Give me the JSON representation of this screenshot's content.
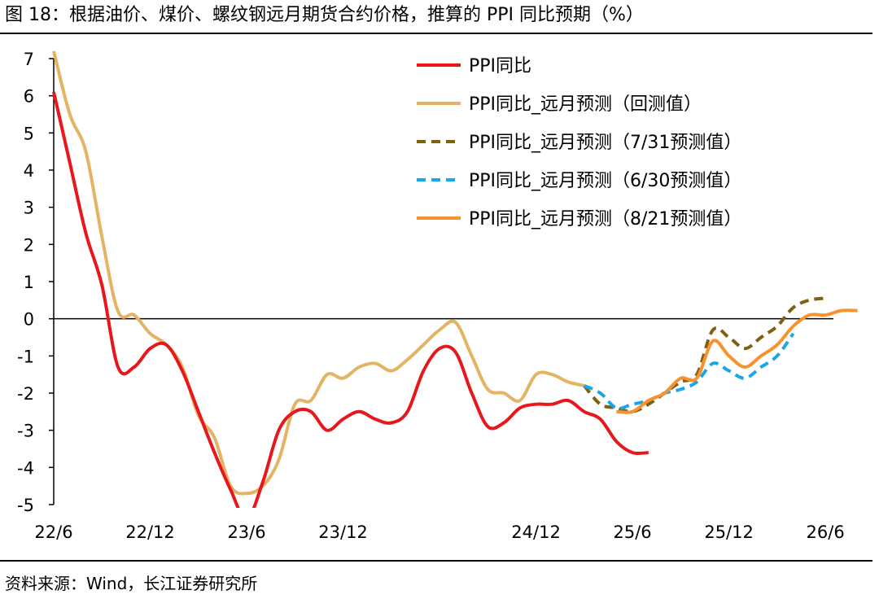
{
  "title": "图 18：根据油价、煤价、螺纹钢远月期货合约价格，推算的 PPI 同比预期（%）",
  "source": "资料来源：Wind，长江证券研究所",
  "chart_data": {
    "type": "line",
    "xlim": [
      0,
      48.5
    ],
    "ylim": [
      -5,
      7
    ],
    "yticks": [
      7,
      6,
      5,
      4,
      3,
      2,
      1,
      0,
      -1,
      -2,
      -3,
      -4,
      -5
    ],
    "ytick_labels": [
      "7",
      "6",
      "5",
      "4",
      "3",
      "2",
      "1",
      "0",
      "-1",
      "-2",
      "-3",
      "-4",
      "-5"
    ],
    "xticks": [
      {
        "x": 0,
        "label": "22/6"
      },
      {
        "x": 6,
        "label": "22/12"
      },
      {
        "x": 12,
        "label": "23/6"
      },
      {
        "x": 18,
        "label": "23/12"
      },
      {
        "x": 30,
        "label": "24/12"
      },
      {
        "x": 36,
        "label": "25/6"
      },
      {
        "x": 42,
        "label": "25/12"
      },
      {
        "x": 48,
        "label": "26/6"
      }
    ],
    "grid": false,
    "legend_position": "top-right",
    "series": [
      {
        "name": "PPI同比",
        "color": "#e8171c",
        "dash": "solid",
        "points": [
          [
            0,
            6.1
          ],
          [
            1,
            4.2
          ],
          [
            2,
            2.3
          ],
          [
            3,
            0.9
          ],
          [
            4,
            -1.3
          ],
          [
            5,
            -1.3
          ],
          [
            6,
            -0.8
          ],
          [
            7,
            -0.7
          ],
          [
            8,
            -1.4
          ],
          [
            9,
            -2.5
          ],
          [
            10,
            -3.6
          ],
          [
            11,
            -4.6
          ],
          [
            12,
            -5.4
          ],
          [
            13,
            -4.4
          ],
          [
            14,
            -3.0
          ],
          [
            15,
            -2.5
          ],
          [
            16,
            -2.5
          ],
          [
            17,
            -3.0
          ],
          [
            18,
            -2.7
          ],
          [
            19,
            -2.5
          ],
          [
            20,
            -2.7
          ],
          [
            21,
            -2.8
          ],
          [
            22,
            -2.5
          ],
          [
            23,
            -1.4
          ],
          [
            24,
            -0.8
          ],
          [
            25,
            -0.9
          ],
          [
            26,
            -2.0
          ],
          [
            27,
            -2.9
          ],
          [
            28,
            -2.8
          ],
          [
            29,
            -2.4
          ],
          [
            30,
            -2.3
          ],
          [
            31,
            -2.3
          ],
          [
            32,
            -2.2
          ],
          [
            33,
            -2.5
          ],
          [
            34,
            -2.7
          ],
          [
            35,
            -3.3
          ],
          [
            36,
            -3.6
          ],
          [
            37,
            -3.6
          ]
        ]
      },
      {
        "name": "PPI同比_远月预测（回测值）",
        "color": "#e2b463",
        "dash": "solid",
        "points": [
          [
            0,
            7.2
          ],
          [
            1,
            5.5
          ],
          [
            2,
            4.5
          ],
          [
            3,
            2.2
          ],
          [
            4,
            0.2
          ],
          [
            5,
            0.1
          ],
          [
            6,
            -0.4
          ],
          [
            7,
            -0.7
          ],
          [
            8,
            -1.3
          ],
          [
            9,
            -2.6
          ],
          [
            10,
            -3.2
          ],
          [
            11,
            -4.5
          ],
          [
            12,
            -4.7
          ],
          [
            13,
            -4.5
          ],
          [
            14,
            -3.8
          ],
          [
            15,
            -2.3
          ],
          [
            16,
            -2.2
          ],
          [
            17,
            -1.5
          ],
          [
            18,
            -1.6
          ],
          [
            19,
            -1.3
          ],
          [
            20,
            -1.2
          ],
          [
            21,
            -1.4
          ],
          [
            22,
            -1.1
          ],
          [
            23,
            -0.7
          ],
          [
            24,
            -0.3
          ],
          [
            25,
            -0.1
          ],
          [
            26,
            -1.0
          ],
          [
            27,
            -1.9
          ],
          [
            28,
            -2.0
          ],
          [
            29,
            -2.2
          ],
          [
            30,
            -1.5
          ],
          [
            31,
            -1.5
          ],
          [
            32,
            -1.7
          ],
          [
            33,
            -1.8
          ]
        ]
      },
      {
        "name": "PPI同比_远月预测（7/31预测值）",
        "color": "#7f6013",
        "dash": "dashed",
        "points": [
          [
            33,
            -1.8
          ],
          [
            34,
            -2.3
          ],
          [
            35,
            -2.4
          ],
          [
            36,
            -2.5
          ],
          [
            37,
            -2.3
          ],
          [
            38,
            -2.0
          ],
          [
            39,
            -1.7
          ],
          [
            40,
            -1.5
          ],
          [
            41,
            -0.3
          ],
          [
            42,
            -0.5
          ],
          [
            43,
            -0.8
          ],
          [
            44,
            -0.5
          ],
          [
            45,
            -0.2
          ],
          [
            46,
            0.3
          ],
          [
            47,
            0.5
          ],
          [
            48,
            0.55
          ]
        ]
      },
      {
        "name": "PPI同比_远月预测（6/30预测值）",
        "color": "#1aa7ea",
        "dash": "dashed",
        "points": [
          [
            33,
            -1.8
          ],
          [
            34,
            -2.0
          ],
          [
            35,
            -2.4
          ],
          [
            36,
            -2.3
          ],
          [
            37,
            -2.2
          ],
          [
            38,
            -2.0
          ],
          [
            39,
            -1.9
          ],
          [
            40,
            -1.7
          ],
          [
            41,
            -1.2
          ],
          [
            42,
            -1.4
          ],
          [
            43,
            -1.6
          ],
          [
            44,
            -1.3
          ],
          [
            45,
            -1.0
          ],
          [
            46,
            -0.4
          ]
        ]
      },
      {
        "name": "PPI同比_远月预测（8/21预测值）",
        "color": "#f7922e",
        "dash": "solid",
        "points": [
          [
            35,
            -2.5
          ],
          [
            36,
            -2.5
          ],
          [
            37,
            -2.2
          ],
          [
            38,
            -2.0
          ],
          [
            39,
            -1.6
          ],
          [
            40,
            -1.6
          ],
          [
            41,
            -0.6
          ],
          [
            42,
            -1.0
          ],
          [
            43,
            -1.3
          ],
          [
            44,
            -1.0
          ],
          [
            45,
            -0.7
          ],
          [
            46,
            -0.2
          ],
          [
            47,
            0.1
          ],
          [
            48,
            0.1
          ],
          [
            49,
            0.22
          ],
          [
            50,
            0.22
          ]
        ]
      }
    ]
  }
}
